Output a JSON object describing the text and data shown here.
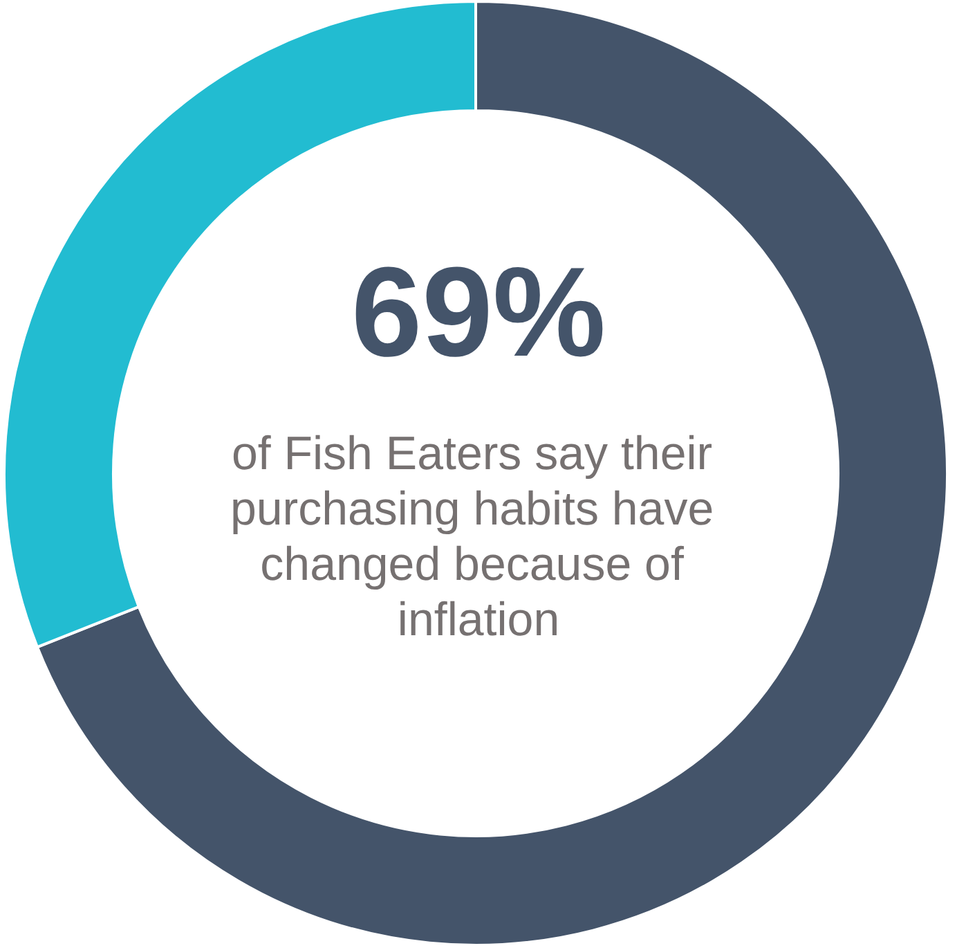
{
  "chart_data": {
    "type": "donut",
    "categories": [
      null,
      null
    ],
    "values": [
      69,
      31
    ],
    "colors": [
      "#44546a",
      "#22bcd1"
    ],
    "value_labels": [
      "69%",
      null
    ],
    "annotations": [
      "of Fish Eaters say their purchasing habits have changed because of inflation"
    ]
  }
}
